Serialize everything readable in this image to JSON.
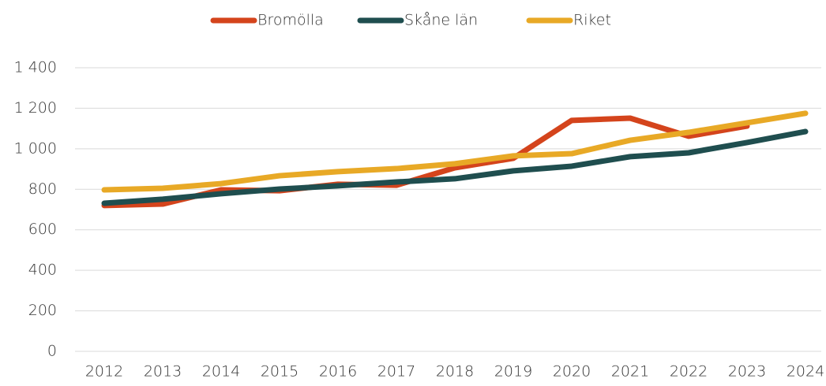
{
  "chart_data": {
    "type": "line",
    "x": [
      "2012",
      "2013",
      "2014",
      "2015",
      "2016",
      "2017",
      "2018",
      "2019",
      "2020",
      "2021",
      "2022",
      "2023",
      "2024"
    ],
    "series": [
      {
        "name": "Bromölla",
        "color": "#d4441c",
        "values": [
          720,
          727,
          797,
          793,
          825,
          820,
          906,
          953,
          1140,
          1151,
          1062,
          1112,
          null
        ]
      },
      {
        "name": "Skåne län",
        "color": "#1f4e4f",
        "values": [
          731,
          751,
          778,
          801,
          817,
          836,
          852,
          891,
          914,
          961,
          980,
          1031,
          1085
        ]
      },
      {
        "name": "Riket",
        "color": "#e8a926",
        "values": [
          797,
          805,
          828,
          867,
          887,
          902,
          926,
          965,
          976,
          1042,
          1081,
          1128,
          1175
        ]
      }
    ],
    "ylim": [
      0,
      1400
    ],
    "yticks": [
      0,
      200,
      400,
      600,
      800,
      {
        "value": 1000,
        "label": "1 000"
      },
      {
        "value": 1200,
        "label": "1 200"
      },
      {
        "value": 1400,
        "label": "1 400"
      }
    ],
    "grid": true,
    "legend": "top"
  }
}
